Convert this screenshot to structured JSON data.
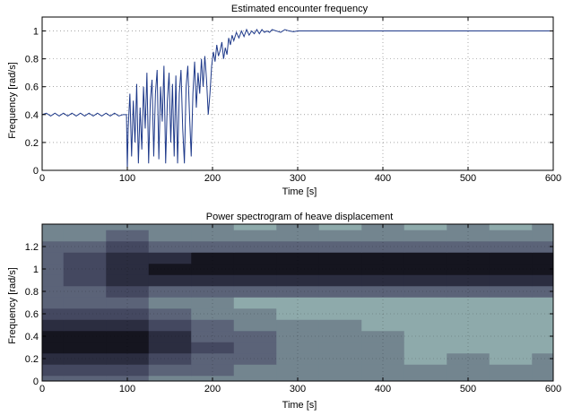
{
  "chart_data": [
    {
      "type": "line",
      "title": "Estimated encounter frequency",
      "xlabel": "Time [s]",
      "ylabel": "Frequency [rad/s]",
      "xlim": [
        0,
        600
      ],
      "ylim": [
        0,
        1.1
      ],
      "xticks": [
        0,
        100,
        200,
        300,
        400,
        500,
        600
      ],
      "yticks": [
        0,
        0.2,
        0.4,
        0.6,
        0.8,
        1
      ],
      "grid": true,
      "colors": {
        "line": "#1f3a8a"
      },
      "series": [
        {
          "x": [
            0,
            5,
            10,
            15,
            20,
            25,
            30,
            35,
            40,
            45,
            50,
            55,
            60,
            65,
            70,
            75,
            80,
            85,
            90,
            95,
            99,
            100,
            101,
            103,
            105,
            107,
            109,
            111,
            113,
            115,
            117,
            119,
            121,
            123,
            125,
            127,
            129,
            131,
            133,
            135,
            137,
            139,
            141,
            143,
            145,
            147,
            149,
            151,
            153,
            155,
            157,
            159,
            161,
            163,
            165,
            167,
            169,
            171,
            173,
            175,
            177,
            179,
            181,
            183,
            185,
            187,
            189,
            191,
            193,
            195,
            197,
            199,
            201,
            203,
            205,
            207,
            209,
            211,
            213,
            215,
            217,
            219,
            221,
            223,
            225,
            228,
            231,
            234,
            237,
            240,
            243,
            246,
            249,
            252,
            255,
            258,
            261,
            264,
            267,
            270,
            275,
            280,
            285,
            290,
            295,
            300,
            310,
            320,
            330,
            350,
            400,
            450,
            500,
            550,
            600
          ],
          "y": [
            0.4,
            0.41,
            0.39,
            0.41,
            0.39,
            0.41,
            0.39,
            0.41,
            0.39,
            0.41,
            0.39,
            0.41,
            0.39,
            0.41,
            0.39,
            0.41,
            0.39,
            0.41,
            0.39,
            0.4,
            0.4,
            0.01,
            0.3,
            0.55,
            0.1,
            0.5,
            0.2,
            0.62,
            0.05,
            0.45,
            0.15,
            0.6,
            0.3,
            0.7,
            0.05,
            0.5,
            0.65,
            0.1,
            0.55,
            0.72,
            0.08,
            0.6,
            0.35,
            0.75,
            0.05,
            0.5,
            0.7,
            0.2,
            0.62,
            0.1,
            0.68,
            0.05,
            0.55,
            0.72,
            0.3,
            0.05,
            0.6,
            0.75,
            0.4,
            0.1,
            0.55,
            0.78,
            0.45,
            0.7,
            0.55,
            0.8,
            0.6,
            0.82,
            0.65,
            0.4,
            0.55,
            0.75,
            0.85,
            0.78,
            0.9,
            0.82,
            0.86,
            0.92,
            0.8,
            0.88,
            0.83,
            0.95,
            0.9,
            0.97,
            0.93,
            0.99,
            0.95,
            1.0,
            0.96,
            1.01,
            0.97,
            1.0,
            0.98,
            1.01,
            0.98,
            1.01,
            0.99,
            1.0,
            0.99,
            1.01,
            1.0,
            0.99,
            1.01,
            1.0,
            0.995,
            1.0,
            1.0,
            1.0,
            1.0,
            1.0,
            1.0,
            1.0,
            1.0,
            1.0,
            1.0
          ]
        }
      ]
    },
    {
      "type": "heatmap",
      "title": "Power spectrogram of heave displacement",
      "xlabel": "Time [s]",
      "ylabel": "Frequency [rad/s]",
      "xlim": [
        0,
        600
      ],
      "ylim": [
        0,
        1.4
      ],
      "xticks": [
        0,
        100,
        200,
        300,
        400,
        500,
        600
      ],
      "yticks": [
        0,
        0.2,
        0.4,
        0.6,
        0.8,
        1,
        1.2
      ],
      "grid": true,
      "x": [
        0,
        50,
        100,
        150,
        200,
        250,
        300,
        350,
        400,
        450,
        500,
        550,
        600
      ],
      "y": [
        0,
        0.1,
        0.2,
        0.3,
        0.4,
        0.5,
        0.6,
        0.7,
        0.8,
        0.9,
        1.0,
        1.1,
        1.2,
        1.3,
        1.4
      ],
      "z": [
        [
          0.45,
          0.5,
          0.55,
          0.4,
          0.35,
          0.32,
          0.3,
          0.3,
          0.32,
          0.3,
          0.3,
          0.3,
          0.35
        ],
        [
          0.6,
          0.62,
          0.68,
          0.5,
          0.45,
          0.4,
          0.35,
          0.33,
          0.36,
          0.3,
          0.32,
          0.3,
          0.33
        ],
        [
          0.8,
          0.82,
          0.85,
          0.7,
          0.55,
          0.45,
          0.38,
          0.35,
          0.35,
          0.28,
          0.3,
          0.28,
          0.3
        ],
        [
          0.88,
          0.9,
          0.92,
          0.78,
          0.6,
          0.48,
          0.4,
          0.35,
          0.33,
          0.28,
          0.28,
          0.28,
          0.28
        ],
        [
          0.9,
          0.92,
          0.9,
          0.72,
          0.55,
          0.45,
          0.38,
          0.33,
          0.3,
          0.26,
          0.26,
          0.26,
          0.26
        ],
        [
          0.82,
          0.85,
          0.8,
          0.6,
          0.45,
          0.38,
          0.33,
          0.3,
          0.28,
          0.25,
          0.25,
          0.25,
          0.25
        ],
        [
          0.6,
          0.65,
          0.62,
          0.45,
          0.35,
          0.3,
          0.28,
          0.26,
          0.25,
          0.23,
          0.23,
          0.23,
          0.24
        ],
        [
          0.45,
          0.5,
          0.5,
          0.4,
          0.3,
          0.27,
          0.26,
          0.25,
          0.24,
          0.23,
          0.23,
          0.23,
          0.24
        ],
        [
          0.5,
          0.55,
          0.62,
          0.55,
          0.5,
          0.48,
          0.47,
          0.47,
          0.47,
          0.47,
          0.47,
          0.47,
          0.48
        ],
        [
          0.55,
          0.6,
          0.78,
          0.82,
          0.82,
          0.82,
          0.82,
          0.82,
          0.82,
          0.82,
          0.82,
          0.82,
          0.82
        ],
        [
          0.55,
          0.6,
          0.85,
          0.93,
          0.94,
          0.94,
          0.94,
          0.94,
          0.94,
          0.94,
          0.94,
          0.94,
          0.94
        ],
        [
          0.55,
          0.6,
          0.8,
          0.85,
          0.86,
          0.86,
          0.86,
          0.86,
          0.86,
          0.86,
          0.86,
          0.86,
          0.86
        ],
        [
          0.5,
          0.55,
          0.6,
          0.5,
          0.45,
          0.45,
          0.45,
          0.45,
          0.45,
          0.45,
          0.45,
          0.45,
          0.45
        ],
        [
          0.4,
          0.42,
          0.45,
          0.4,
          0.35,
          0.3,
          0.32,
          0.3,
          0.3,
          0.32,
          0.3,
          0.3,
          0.33
        ],
        [
          0.38,
          0.4,
          0.42,
          0.38,
          0.33,
          0.25,
          0.3,
          0.22,
          0.3,
          0.25,
          0.3,
          0.25,
          0.3
        ]
      ],
      "colors": [
        "#b7d2d2",
        "#8eaaab",
        "#73858f",
        "#5b6378",
        "#444860",
        "#2b2d40",
        "#15151f"
      ]
    }
  ]
}
